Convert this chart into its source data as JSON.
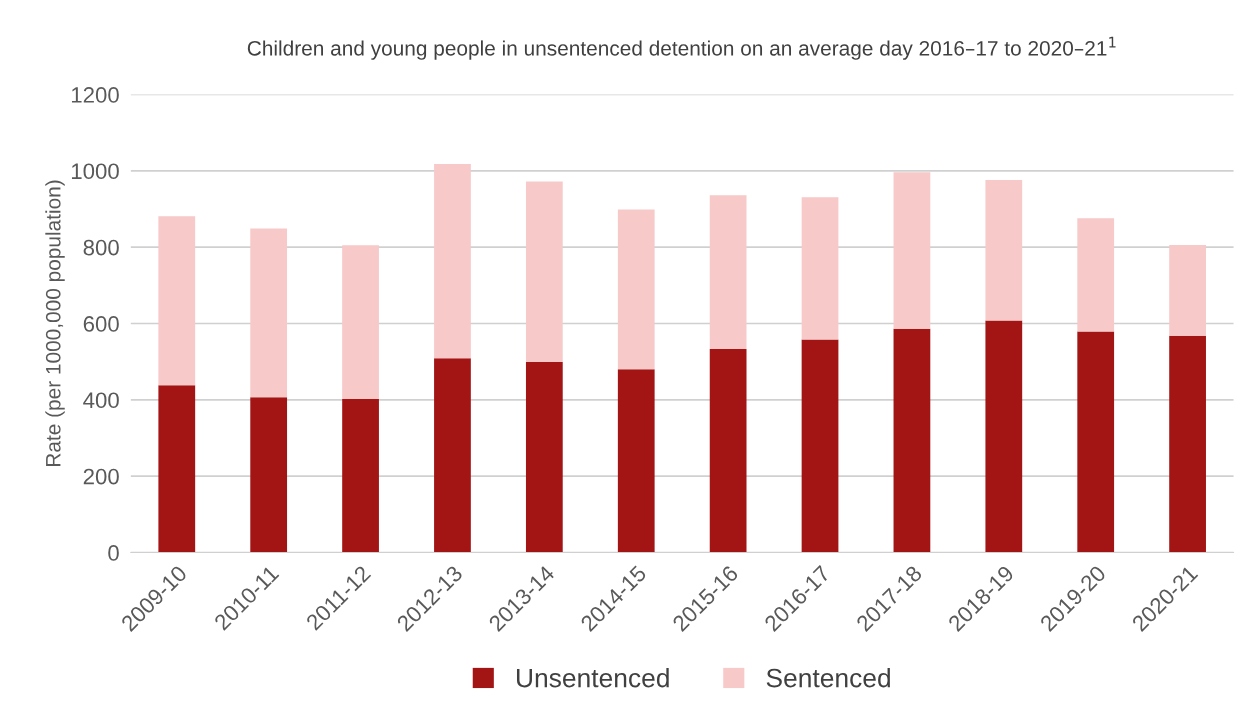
{
  "chart_data": {
    "type": "bar",
    "stacked": true,
    "title": "Children and young people in unsentenced detention on an average day 2016–17 to 2020–21$^{1}$",
    "ylabel": "Rate (per 1000,000 population)",
    "categories": [
      "2009-10",
      "2010-11",
      "2011-12",
      "2012-13",
      "2013-14",
      "2014-15",
      "2015-16",
      "2016-17",
      "2017-18",
      "2018-19",
      "2019-20",
      "2020-21"
    ],
    "series": [
      {
        "name": "Unsentenced",
        "color": "#a31515",
        "values": [
          438,
          407,
          402,
          509,
          499,
          480,
          533,
          558,
          586,
          608,
          579,
          568
        ]
      },
      {
        "name": "Sentenced",
        "color": "#f7c9c9",
        "values": [
          443,
          442,
          403,
          509,
          473,
          419,
          403,
          373,
          410,
          368,
          297,
          238
        ]
      }
    ],
    "ylim": [
      0,
      1200
    ],
    "yticks": [
      0,
      200,
      400,
      600,
      800,
      1000,
      1200
    ],
    "grid": "y",
    "legend": "bottom"
  }
}
